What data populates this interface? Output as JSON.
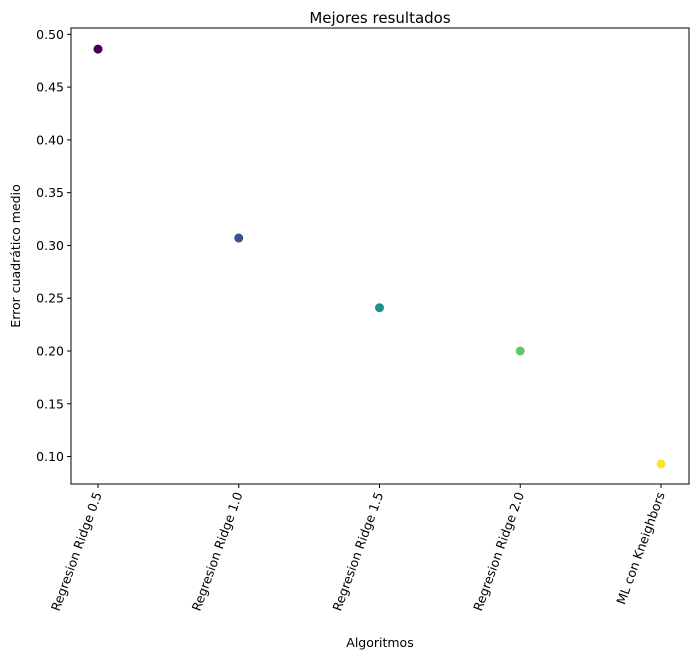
{
  "chart_data": {
    "type": "scatter",
    "title": "Mejores resultados",
    "xlabel": "Algoritmos",
    "ylabel": "Error cuadrático medio",
    "categories": [
      "Regresion Ridge 0.5",
      "Regresion Ridge 1.0",
      "Regresion Ridge 1.5",
      "Regresion Ridge 2.0",
      "ML con Kneighbors"
    ],
    "values": [
      0.486,
      0.307,
      0.241,
      0.2,
      0.093
    ],
    "point_colors": [
      "#440154",
      "#3b528b",
      "#21918c",
      "#5ec962",
      "#fde725"
    ],
    "yticks": [
      "0.10",
      "0.15",
      "0.20",
      "0.25",
      "0.30",
      "0.35",
      "0.40",
      "0.45",
      "0.50"
    ],
    "ylim": [
      0.074,
      0.506
    ],
    "grid": false,
    "legend": "none"
  }
}
